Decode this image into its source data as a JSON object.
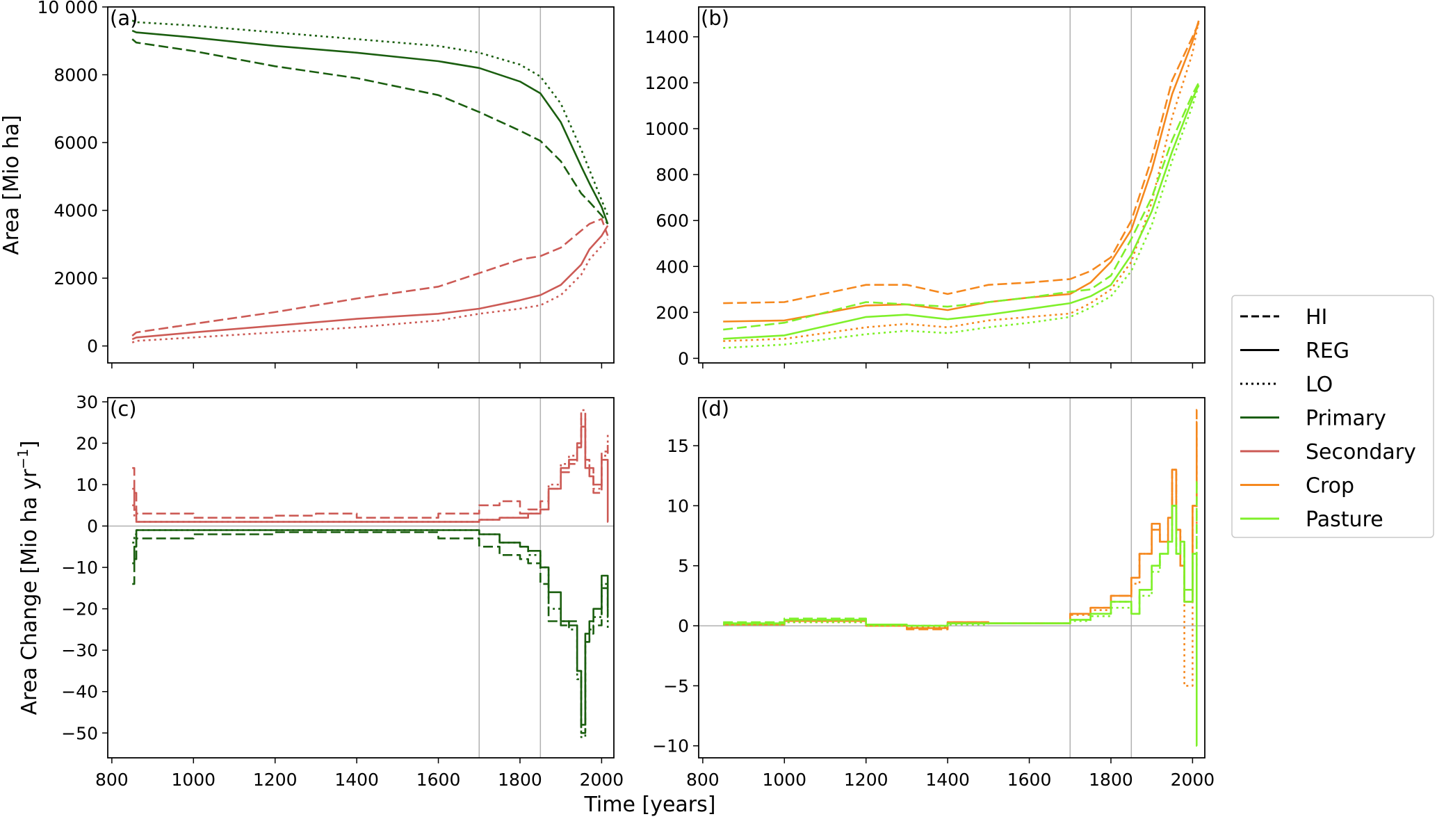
{
  "xlabel": "Time [years]",
  "legend": {
    "placement": "right",
    "entries": [
      {
        "label": "HI",
        "style": "dashed",
        "color": "#000000"
      },
      {
        "label": "REG",
        "style": "solid",
        "color": "#000000"
      },
      {
        "label": "LO",
        "style": "dotted",
        "color": "#000000"
      },
      {
        "label": "Primary",
        "style": "solid",
        "color": "#1a5e0f"
      },
      {
        "label": "Secondary",
        "style": "solid",
        "color": "#cc5a55"
      },
      {
        "label": "Crop",
        "style": "solid",
        "color": "#f5881e"
      },
      {
        "label": "Pasture",
        "style": "solid",
        "color": "#7ff02a"
      }
    ]
  },
  "colors": {
    "primary": "#1a5e0f",
    "secondary": "#cc5a55",
    "crop": "#f5881e",
    "pasture": "#7ff02a",
    "vline": "#b0b0b0"
  },
  "chart_data": [
    {
      "panel": "(a)",
      "type": "line",
      "ylabel": "Area [Mio ha]",
      "xlim": [
        790,
        2030
      ],
      "ylim": [
        -500,
        10000
      ],
      "xticks": [
        800,
        1000,
        1200,
        1400,
        1600,
        1800,
        2000
      ],
      "yticks": [
        0,
        2000,
        4000,
        6000,
        8000,
        10000
      ],
      "ytick_labels": [
        "0",
        "2000",
        "4000",
        "6000",
        "8000",
        "10 000"
      ],
      "vlines": [
        1700,
        1850
      ],
      "x": [
        850,
        860,
        1000,
        1200,
        1400,
        1600,
        1700,
        1800,
        1850,
        1900,
        1950,
        1970,
        2000,
        2015
      ],
      "series": [
        {
          "name": "Primary HI",
          "color": "primary",
          "style": "dashed",
          "values": [
            9050,
            8950,
            8700,
            8250,
            7900,
            7400,
            6900,
            6350,
            6050,
            5450,
            4500,
            4250,
            3850,
            3600
          ]
        },
        {
          "name": "Primary REG",
          "color": "primary",
          "style": "solid",
          "values": [
            9300,
            9250,
            9100,
            8850,
            8650,
            8400,
            8200,
            7800,
            7450,
            6600,
            5300,
            4800,
            4100,
            3600
          ]
        },
        {
          "name": "Primary LO",
          "color": "primary",
          "style": "dotted",
          "values": [
            9600,
            9550,
            9450,
            9250,
            9050,
            8850,
            8650,
            8300,
            7950,
            7150,
            5800,
            5200,
            4300,
            3850
          ]
        },
        {
          "name": "Secondary HI",
          "color": "secondary",
          "style": "dashed",
          "values": [
            300,
            400,
            650,
            1000,
            1400,
            1750,
            2150,
            2550,
            2650,
            2900,
            3400,
            3600,
            3750,
            3250
          ]
        },
        {
          "name": "Secondary REG",
          "color": "secondary",
          "style": "solid",
          "values": [
            200,
            250,
            400,
            600,
            800,
            950,
            1100,
            1350,
            1500,
            1800,
            2400,
            2850,
            3250,
            3550
          ]
        },
        {
          "name": "Secondary LO",
          "color": "secondary",
          "style": "dotted",
          "values": [
            100,
            150,
            250,
            400,
            550,
            750,
            950,
            1100,
            1200,
            1500,
            2100,
            2550,
            2950,
            3150
          ]
        }
      ]
    },
    {
      "panel": "(b)",
      "type": "line",
      "ylabel": "",
      "xlim": [
        790,
        2030
      ],
      "ylim": [
        -20,
        1530
      ],
      "xticks": [
        800,
        1000,
        1200,
        1400,
        1600,
        1800,
        2000
      ],
      "yticks": [
        0,
        200,
        400,
        600,
        800,
        1000,
        1200,
        1400
      ],
      "ytick_labels": [
        "0",
        "200",
        "400",
        "600",
        "800",
        "1000",
        "1200",
        "1400"
      ],
      "vlines": [
        1700,
        1850
      ],
      "x": [
        850,
        1000,
        1200,
        1300,
        1400,
        1500,
        1600,
        1700,
        1750,
        1800,
        1850,
        1900,
        1950,
        2000,
        2015
      ],
      "series": [
        {
          "name": "Crop HI",
          "color": "crop",
          "style": "dashed",
          "values": [
            240,
            245,
            320,
            320,
            280,
            320,
            330,
            345,
            380,
            440,
            600,
            870,
            1210,
            1400,
            1460
          ]
        },
        {
          "name": "Crop REG",
          "color": "crop",
          "style": "solid",
          "values": [
            160,
            165,
            230,
            235,
            210,
            245,
            265,
            280,
            330,
            420,
            560,
            820,
            1150,
            1380,
            1470
          ]
        },
        {
          "name": "Crop LO",
          "color": "crop",
          "style": "dotted",
          "values": [
            75,
            85,
            135,
            150,
            135,
            165,
            180,
            195,
            240,
            300,
            420,
            680,
            1050,
            1330,
            1470
          ]
        },
        {
          "name": "Pasture HI",
          "color": "pasture",
          "style": "dashed",
          "values": [
            125,
            155,
            245,
            235,
            225,
            245,
            265,
            290,
            300,
            360,
            520,
            700,
            950,
            1150,
            1200
          ]
        },
        {
          "name": "Pasture REG",
          "color": "pasture",
          "style": "solid",
          "values": [
            85,
            100,
            180,
            190,
            170,
            190,
            215,
            240,
            270,
            320,
            450,
            640,
            900,
            1130,
            1190
          ]
        },
        {
          "name": "Pasture LO",
          "color": "pasture",
          "style": "dotted",
          "values": [
            45,
            60,
            105,
            120,
            110,
            135,
            155,
            180,
            220,
            270,
            380,
            580,
            860,
            1100,
            1190
          ]
        }
      ]
    },
    {
      "panel": "(c)",
      "type": "line",
      "ylabel": "Area Change [Mio ha yr",
      "ylabel_sup": "−1",
      "ylabel_end": "]",
      "xlim": [
        790,
        2030
      ],
      "ylim": [
        -56,
        31
      ],
      "xticks": [
        800,
        1000,
        1200,
        1400,
        1600,
        1800,
        2000
      ],
      "yticks": [
        -50,
        -40,
        -30,
        -20,
        -10,
        0,
        10,
        20,
        30
      ],
      "ytick_labels": [
        "−50",
        "−40",
        "−30",
        "−20",
        "−10",
        "0",
        "10",
        "20",
        "30"
      ],
      "vlines": [
        1700,
        1850
      ],
      "hline": 0,
      "step_x": [
        850,
        855,
        860,
        1000,
        1200,
        1300,
        1400,
        1600,
        1700,
        1750,
        1800,
        1820,
        1850,
        1870,
        1900,
        1920,
        1940,
        1950,
        1960,
        1970,
        1980,
        2000,
        2015
      ],
      "series": [
        {
          "name": "Primary HI",
          "color": "primary",
          "style": "dashed",
          "values": [
            -14,
            -8,
            -3,
            -2,
            -1.5,
            -1.5,
            -1.5,
            -3,
            -5,
            -7,
            -8,
            -9,
            -14,
            -23,
            -24,
            -23,
            -35,
            -50,
            -28,
            -26,
            -24,
            -15,
            -22
          ]
        },
        {
          "name": "Primary REG",
          "color": "primary",
          "style": "solid",
          "values": [
            -9,
            -5,
            -1,
            -1,
            -1,
            -1,
            -1,
            -1,
            -2,
            -4,
            -5,
            -6,
            -10,
            -16,
            -23,
            -24,
            -35,
            -48,
            -26,
            -23,
            -20,
            -12,
            -20
          ]
        },
        {
          "name": "Primary LO",
          "color": "primary",
          "style": "dotted",
          "values": [
            -4,
            -2,
            -1,
            -1,
            -1,
            -1,
            -1,
            -1,
            -2,
            -4,
            -5,
            -7,
            -10,
            -20,
            -23,
            -25,
            -37,
            -51,
            -28,
            -25,
            -22,
            -14,
            -25
          ]
        },
        {
          "name": "Secondary HI",
          "color": "secondary",
          "style": "dashed",
          "values": [
            14,
            8,
            3,
            2,
            2.5,
            3,
            2,
            3,
            5,
            6,
            3,
            4,
            6,
            9,
            13,
            15,
            20,
            27,
            16,
            14,
            8,
            18,
            20
          ]
        },
        {
          "name": "Secondary REG",
          "color": "secondary",
          "style": "solid",
          "values": [
            9,
            4,
            1,
            1,
            1,
            1,
            1,
            1,
            1.5,
            2,
            2,
            3,
            4,
            9,
            14,
            16,
            19,
            24,
            14,
            12,
            10,
            16,
            1
          ]
        },
        {
          "name": "Secondary LO",
          "color": "secondary",
          "style": "dotted",
          "values": [
            5,
            2,
            1,
            1,
            1,
            1,
            1,
            1,
            1.5,
            2,
            2,
            3,
            4,
            10,
            15,
            17,
            20,
            28,
            16,
            13,
            9,
            17,
            22
          ]
        }
      ]
    },
    {
      "panel": "(d)",
      "type": "line",
      "ylabel": "",
      "xlim": [
        790,
        2030
      ],
      "ylim": [
        -11,
        19
      ],
      "xticks": [
        800,
        1000,
        1200,
        1400,
        1600,
        1800,
        2000
      ],
      "yticks": [
        -10,
        -5,
        0,
        5,
        10,
        15
      ],
      "ytick_labels": [
        "−10",
        "−5",
        "0",
        "5",
        "10",
        "15"
      ],
      "vlines": [
        1700,
        1850
      ],
      "hline": 0,
      "step_x": [
        850,
        1000,
        1200,
        1300,
        1400,
        1500,
        1700,
        1750,
        1800,
        1850,
        1870,
        1900,
        1920,
        1940,
        1950,
        1960,
        1970,
        1980,
        2000,
        2010
      ],
      "series": [
        {
          "name": "Crop HI",
          "color": "crop",
          "style": "dashed",
          "values": [
            0.2,
            0.5,
            0,
            -0.3,
            0.3,
            0.2,
            1,
            1.5,
            2.5,
            4,
            6,
            8,
            7,
            9,
            13,
            8,
            5,
            2,
            10,
            18
          ]
        },
        {
          "name": "Crop REG",
          "color": "crop",
          "style": "solid",
          "values": [
            0.1,
            0.4,
            0,
            -0.2,
            0.3,
            0.2,
            1,
            1.5,
            2.5,
            4,
            6,
            8.5,
            7,
            9,
            13,
            8,
            5,
            2,
            10,
            17
          ]
        },
        {
          "name": "Crop LO",
          "color": "crop",
          "style": "dotted",
          "values": [
            0.1,
            0.3,
            0,
            -0.1,
            0.2,
            0.2,
            0.9,
            1.3,
            2,
            3.5,
            6,
            8,
            7,
            9,
            13,
            8,
            5,
            -5,
            8,
            16
          ]
        },
        {
          "name": "Pasture HI",
          "color": "pasture",
          "style": "dashed",
          "values": [
            0.3,
            0.6,
            0.1,
            0,
            0.2,
            0.2,
            0.5,
            1,
            2,
            1,
            3,
            5,
            6,
            7,
            10,
            6,
            7,
            3,
            6,
            12
          ]
        },
        {
          "name": "Pasture REG",
          "color": "pasture",
          "style": "solid",
          "values": [
            0.2,
            0.5,
            0.1,
            0,
            0.2,
            0.2,
            0.5,
            1,
            2,
            1,
            3,
            5,
            6,
            7,
            10,
            6,
            7,
            2,
            6,
            -10
          ]
        },
        {
          "name": "Pasture LO",
          "color": "pasture",
          "style": "dotted",
          "values": [
            0.1,
            0.3,
            0,
            0,
            0.1,
            0.2,
            0.4,
            0.8,
            1.5,
            1,
            2.5,
            4.5,
            6,
            7,
            10,
            6,
            7,
            2,
            5,
            12
          ]
        }
      ]
    }
  ]
}
